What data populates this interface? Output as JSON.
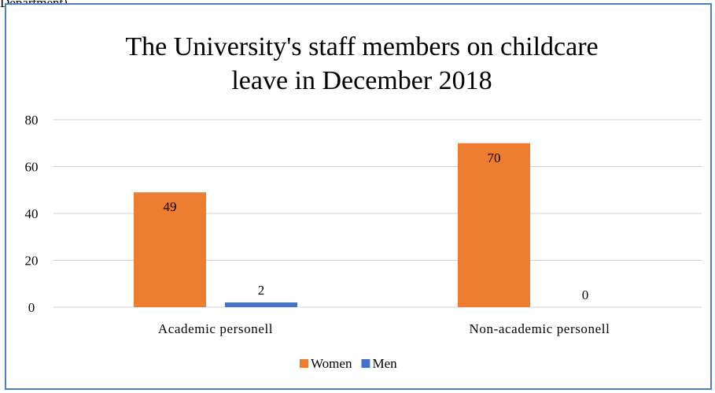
{
  "caption_fragment": "Department)",
  "colors": {
    "women": "#ed7d31",
    "men": "#4472c4",
    "grid": "#d0d0d0",
    "frame": "#4f81bd"
  },
  "chart_data": {
    "type": "bar",
    "title_lines": [
      "The University's  staff members on childcare",
      "leave in December 2018"
    ],
    "categories": [
      "Academic personell",
      "Non-academic personell"
    ],
    "series": [
      {
        "name": "Women",
        "values": [
          49,
          70
        ]
      },
      {
        "name": "Men",
        "values": [
          2,
          0
        ]
      }
    ],
    "ylim": [
      0,
      80
    ],
    "yticks": [
      0,
      20,
      40,
      60,
      80
    ],
    "grid": true,
    "legend_position": "bottom",
    "data_labels": true
  }
}
